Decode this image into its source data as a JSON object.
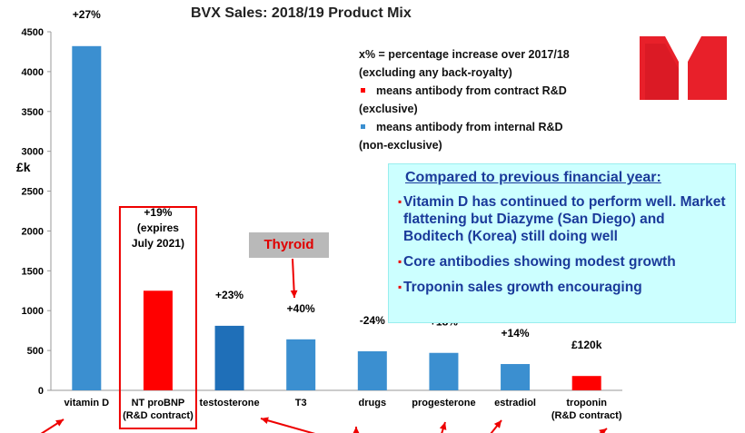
{
  "title": "BVX Sales: 2018/19 Product Mix",
  "ylabel": "£k",
  "legend": {
    "line1": "x% = percentage increase over 2017/18",
    "line2": "(excluding any back-royalty)",
    "red_line1": "means antibody from contract R&D",
    "red_line2": "(exclusive)",
    "blue_line1": "means antibody from internal R&D",
    "blue_line2": "(non-exclusive)"
  },
  "infobox": {
    "heading": "Compared to previous financial year:",
    "points": [
      "Vitamin D has continued to perform well. Market flattening but Diazyme (San Diego) and Boditech (Korea) still doing well",
      "Core antibodies showing modest growth",
      "Troponin sales growth encouraging"
    ]
  },
  "thyroid_label": "Thyroid",
  "colors": {
    "blue": "#3b8fd0",
    "red": "#ff0000",
    "accent": "#ff0000",
    "info_bg": "#ccffff",
    "info_text": "#1a3a9a"
  },
  "chart_data": {
    "type": "bar",
    "title": "BVX Sales: 2018/19 Product Mix",
    "ylabel": "£k",
    "ylim": [
      0,
      4500
    ],
    "yticks": [
      0,
      500,
      1000,
      1500,
      2000,
      2500,
      3000,
      3500,
      4000,
      4500
    ],
    "grid": false,
    "categories": [
      {
        "label": "vitamin D",
        "label2": ""
      },
      {
        "label": "NT proBNP",
        "label2": "(R&D contract)"
      },
      {
        "label": "testosterone",
        "label2": ""
      },
      {
        "label": "T3",
        "label2": ""
      },
      {
        "label": "drugs",
        "label2": ""
      },
      {
        "label": "progesterone",
        "label2": ""
      },
      {
        "label": "estradiol",
        "label2": ""
      },
      {
        "label": "troponin",
        "label2": "(R&D contract)"
      }
    ],
    "values": [
      4320,
      1250,
      810,
      640,
      490,
      470,
      330,
      180
    ],
    "colors": [
      "#3b8fd0",
      "#ff0000",
      "#1f6fb8",
      "#3b8fd0",
      "#3b8fd0",
      "#3b8fd0",
      "#3b8fd0",
      "#ff0000"
    ],
    "data_labels": [
      [
        "+27%"
      ],
      [
        "+19%",
        "(expires",
        "July 2021)"
      ],
      [
        "+23%"
      ],
      [
        "+40%"
      ],
      [
        "-24%"
      ],
      [
        "+18%"
      ],
      [
        "+14%"
      ],
      [
        "£120k"
      ]
    ]
  }
}
